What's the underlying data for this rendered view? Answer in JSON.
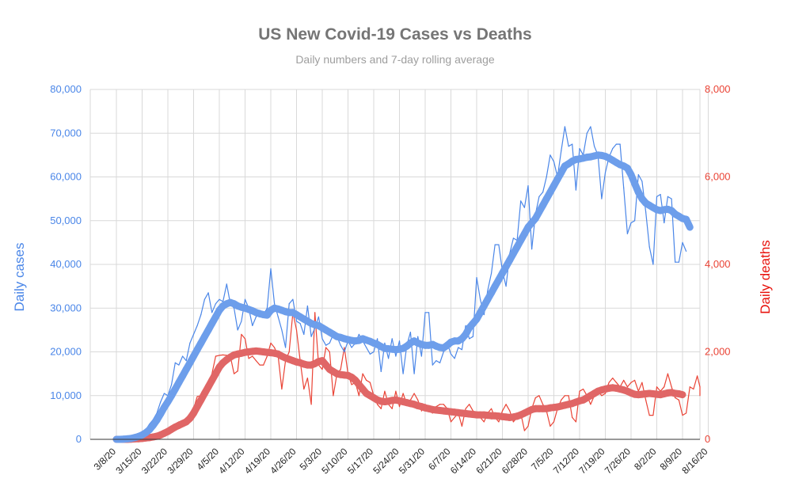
{
  "chart_data": {
    "type": "line",
    "title": "US New Covid-19 Cases vs Deaths",
    "subtitle": "Daily numbers and 7-day rolling average",
    "ylabel_left": "Daily cases",
    "ylabel_right": "Daily deaths",
    "ylim_left": [
      0,
      80000
    ],
    "ylim_right": [
      0,
      8000
    ],
    "yticks_left": [
      "0",
      "10,000",
      "20,000",
      "30,000",
      "40,000",
      "50,000",
      "60,000",
      "70,000",
      "80,000"
    ],
    "yticks_right": [
      "0",
      "2,000",
      "4,000",
      "6,000",
      "8,000"
    ],
    "x_tick_labels": [
      "3/8/20",
      "3/15/20",
      "3/22/20",
      "3/29/20",
      "4/5/20",
      "4/12/20",
      "4/19/20",
      "4/26/20",
      "5/3/20",
      "5/10/20",
      "5/17/20",
      "5/24/20",
      "5/31/20",
      "6/7/20",
      "6/14/20",
      "6/21/20",
      "6/28/20",
      "7/5/20",
      "7/12/20",
      "7/19/20",
      "7/26/20",
      "8/2/20",
      "8/9/20",
      "8/16/20"
    ],
    "grid": true,
    "legend": "none",
    "series": [
      {
        "axis": "left",
        "style": "thin",
        "color": "#4a86e8",
        "start": "3/8/20",
        "values": [
          100,
          150,
          250,
          350,
          500,
          700,
          1000,
          1500,
          2200,
          3500,
          4500,
          6000,
          8500,
          10500,
          10000,
          12500,
          17500,
          17000,
          19000,
          18000,
          22000,
          24000,
          26000,
          28500,
          32000,
          33500,
          29000,
          31000,
          32000,
          31500,
          35500,
          31000,
          30000,
          25000,
          27000,
          32000,
          30000,
          26000,
          28000,
          29500,
          28500,
          30000,
          39000,
          31000,
          28000,
          25000,
          21000,
          31000,
          32000,
          27000,
          26500,
          24000,
          30500,
          23500,
          25500,
          28000,
          23000,
          21500,
          22000,
          24000,
          23500,
          21500,
          20000,
          22500,
          21000,
          22000,
          24000,
          22500,
          21000,
          19500,
          20000,
          23000,
          15500,
          22000,
          18500,
          23000,
          19000,
          22500,
          15000,
          21500,
          24500,
          15000,
          23500,
          19000,
          29000,
          29000,
          17000,
          18000,
          17500,
          20000,
          22000,
          19500,
          18500,
          21000,
          20500,
          26000,
          23000,
          23500,
          37000,
          32000,
          28500,
          34000,
          38000,
          44500,
          44500,
          38500,
          35000,
          42500,
          46000,
          45500,
          54500,
          53000,
          58000,
          43500,
          51500,
          55500,
          56500,
          60000,
          65000,
          63500,
          60000,
          66000,
          71500,
          67000,
          67500,
          57000,
          66500,
          65000,
          70000,
          71500,
          67000,
          65000,
          55000,
          61000,
          64500,
          66500,
          67500,
          67500,
          57500,
          47000,
          49500,
          50000,
          60500,
          59000,
          52000,
          44000,
          40000,
          55500,
          56000,
          49500,
          55500,
          55000,
          40500,
          40500,
          45000,
          43000
        ]
      },
      {
        "axis": "left",
        "style": "thick",
        "color": "#6d9eeb",
        "start": "3/8/20",
        "values": [
          0,
          0,
          50,
          100,
          200,
          400,
          650,
          1000,
          1500,
          2200,
          3200,
          4400,
          5800,
          7300,
          8600,
          10000,
          11500,
          13000,
          14500,
          16000,
          17500,
          19000,
          20500,
          22000,
          23500,
          25000,
          26500,
          28000,
          29500,
          30500,
          31000,
          31300,
          31000,
          30500,
          30200,
          30000,
          29700,
          29400,
          29000,
          28700,
          28500,
          28400,
          29500,
          30000,
          29800,
          29500,
          29200,
          29000,
          29000,
          28500,
          28000,
          27500,
          27000,
          26500,
          26200,
          26000,
          25500,
          25000,
          24500,
          24000,
          23500,
          23300,
          23000,
          22800,
          22600,
          22500,
          22600,
          23000,
          22700,
          22400,
          22000,
          21700,
          21200,
          20800,
          20700,
          20600,
          20500,
          20600,
          20800,
          21300,
          22000,
          22500,
          22000,
          21700,
          21500,
          21500,
          21700,
          21300,
          21000,
          20900,
          21500,
          22200,
          22500,
          22500,
          23000,
          24000,
          25500,
          26500,
          27500,
          29000,
          30500,
          32000,
          33500,
          35000,
          36500,
          38000,
          39500,
          41000,
          42500,
          44000,
          45500,
          47000,
          48500,
          49500,
          50500,
          52000,
          53500,
          55000,
          56500,
          58000,
          59500,
          61000,
          62500,
          63000,
          63600,
          64000,
          64100,
          64300,
          64500,
          64600,
          64800,
          65000,
          64900,
          64700,
          64300,
          63800,
          63300,
          62800,
          62500,
          62000,
          60500,
          58500,
          56500,
          55000,
          54000,
          53500,
          53000,
          52500,
          52300,
          52500,
          52600,
          52300,
          51500,
          51000,
          50500,
          50300,
          48500
        ]
      },
      {
        "axis": "right",
        "style": "thin",
        "color": "#ea4335",
        "start": "3/8/20",
        "values": [
          10,
          10,
          15,
          20,
          25,
          30,
          40,
          55,
          60,
          70,
          90,
          110,
          150,
          200,
          250,
          300,
          350,
          400,
          420,
          380,
          500,
          700,
          980,
          1000,
          1100,
          1300,
          1500,
          1900,
          1920,
          1930,
          1920,
          1900,
          1500,
          1560,
          2400,
          2300,
          1850,
          1900,
          1800,
          1700,
          1700,
          1900,
          2200,
          2100,
          1900,
          1150,
          1800,
          2000,
          2900,
          2500,
          1800,
          1150,
          1400,
          800,
          2900,
          1700,
          1600,
          2100,
          2000,
          1000,
          1500,
          1600,
          2100,
          1500,
          1250,
          1300,
          1000,
          1500,
          1350,
          1300,
          1000,
          800,
          700,
          1100,
          800,
          700,
          1100,
          750,
          1050,
          800,
          900,
          1050,
          900,
          650,
          800,
          700,
          600,
          750,
          800,
          800,
          700,
          400,
          500,
          600,
          300,
          700,
          800,
          650,
          600,
          500,
          400,
          600,
          700,
          500,
          400,
          650,
          800,
          650,
          400,
          500,
          600,
          200,
          300,
          700,
          950,
          1000,
          800,
          650,
          300,
          400,
          700,
          900,
          1000,
          1000,
          500,
          400,
          1100,
          1150,
          1000,
          800,
          1000,
          1100,
          1000,
          1050,
          1300,
          1400,
          1300,
          1200,
          1350,
          1200,
          1300,
          1350,
          1100,
          1300,
          900,
          550,
          550,
          1200,
          1100,
          1200,
          1500,
          1200,
          950,
          900,
          550,
          600,
          1200,
          1150,
          1450,
          1200,
          1050,
          1000
        ]
      },
      {
        "axis": "right",
        "style": "thick",
        "color": "#e06666",
        "start": "3/8/20",
        "values": [
          0,
          0,
          0,
          0,
          5,
          10,
          15,
          20,
          30,
          40,
          55,
          70,
          100,
          140,
          180,
          230,
          280,
          320,
          360,
          400,
          480,
          600,
          750,
          900,
          1050,
          1200,
          1350,
          1500,
          1650,
          1750,
          1820,
          1880,
          1930,
          1950,
          1970,
          1990,
          2000,
          2010,
          2020,
          2010,
          2000,
          1990,
          1980,
          1970,
          1950,
          1900,
          1860,
          1830,
          1800,
          1770,
          1750,
          1720,
          1700,
          1700,
          1730,
          1780,
          1800,
          1700,
          1600,
          1550,
          1500,
          1480,
          1470,
          1460,
          1420,
          1350,
          1250,
          1150,
          1050,
          1000,
          950,
          900,
          870,
          860,
          870,
          890,
          900,
          880,
          860,
          840,
          820,
          800,
          770,
          750,
          720,
          700,
          680,
          670,
          660,
          650,
          640,
          630,
          620,
          610,
          600,
          590,
          580,
          570,
          560,
          560,
          560,
          550,
          540,
          540,
          530,
          520,
          510,
          500,
          510,
          530,
          560,
          600,
          640,
          680,
          700,
          700,
          700,
          700,
          720,
          730,
          740,
          760,
          780,
          800,
          820,
          850,
          880,
          900,
          950,
          1000,
          1050,
          1100,
          1130,
          1150,
          1170,
          1180,
          1170,
          1150,
          1130,
          1100,
          1060,
          1030,
          1020,
          1030,
          1040,
          1050,
          1040,
          1030,
          1020,
          1040,
          1060,
          1070,
          1050,
          1040,
          1020
        ]
      }
    ]
  }
}
